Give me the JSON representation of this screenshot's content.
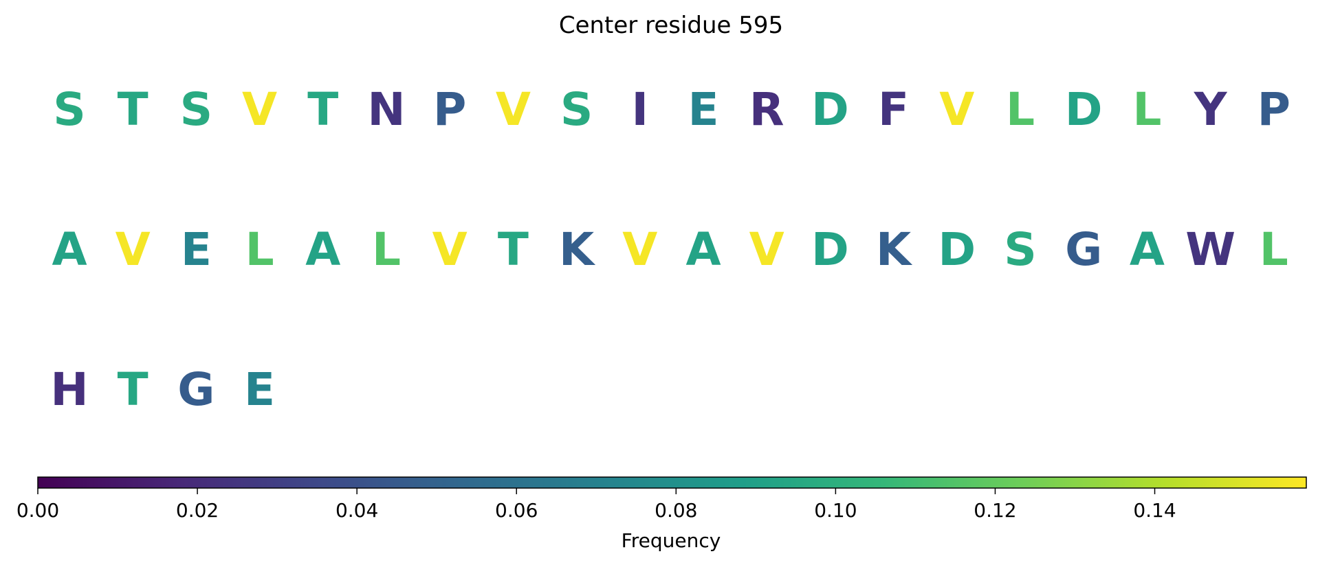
{
  "chart_data": {
    "type": "heatmap",
    "title": "Center residue 595",
    "residues": [
      {
        "letter": "S",
        "frequency": 0.097
      },
      {
        "letter": "T",
        "frequency": 0.095
      },
      {
        "letter": "S",
        "frequency": 0.097
      },
      {
        "letter": "V",
        "frequency": 0.157
      },
      {
        "letter": "T",
        "frequency": 0.095
      },
      {
        "letter": "N",
        "frequency": 0.024
      },
      {
        "letter": "P",
        "frequency": 0.046
      },
      {
        "letter": "V",
        "frequency": 0.157
      },
      {
        "letter": "S",
        "frequency": 0.097
      },
      {
        "letter": "I",
        "frequency": 0.024
      },
      {
        "letter": "E",
        "frequency": 0.071
      },
      {
        "letter": "R",
        "frequency": 0.022
      },
      {
        "letter": "D",
        "frequency": 0.092
      },
      {
        "letter": "F",
        "frequency": 0.024
      },
      {
        "letter": "V",
        "frequency": 0.157
      },
      {
        "letter": "L",
        "frequency": 0.115
      },
      {
        "letter": "D",
        "frequency": 0.092
      },
      {
        "letter": "L",
        "frequency": 0.115
      },
      {
        "letter": "Y",
        "frequency": 0.024
      },
      {
        "letter": "P",
        "frequency": 0.046
      },
      {
        "letter": "A",
        "frequency": 0.092
      },
      {
        "letter": "V",
        "frequency": 0.157
      },
      {
        "letter": "E",
        "frequency": 0.071
      },
      {
        "letter": "L",
        "frequency": 0.115
      },
      {
        "letter": "A",
        "frequency": 0.092
      },
      {
        "letter": "L",
        "frequency": 0.115
      },
      {
        "letter": "V",
        "frequency": 0.157
      },
      {
        "letter": "T",
        "frequency": 0.095
      },
      {
        "letter": "K",
        "frequency": 0.048
      },
      {
        "letter": "V",
        "frequency": 0.157
      },
      {
        "letter": "A",
        "frequency": 0.092
      },
      {
        "letter": "V",
        "frequency": 0.157
      },
      {
        "letter": "D",
        "frequency": 0.092
      },
      {
        "letter": "K",
        "frequency": 0.048
      },
      {
        "letter": "D",
        "frequency": 0.092
      },
      {
        "letter": "S",
        "frequency": 0.097
      },
      {
        "letter": "G",
        "frequency": 0.046
      },
      {
        "letter": "A",
        "frequency": 0.092
      },
      {
        "letter": "W",
        "frequency": 0.024
      },
      {
        "letter": "L",
        "frequency": 0.115
      },
      {
        "letter": "H",
        "frequency": 0.022
      },
      {
        "letter": "T",
        "frequency": 0.095
      },
      {
        "letter": "G",
        "frequency": 0.046
      },
      {
        "letter": "E",
        "frequency": 0.071
      }
    ],
    "colorbar": {
      "label": "Frequency",
      "colormap": "viridis",
      "range": [
        0.0,
        0.159
      ],
      "ticks": [
        "0.00",
        "0.02",
        "0.04",
        "0.06",
        "0.08",
        "0.10",
        "0.12",
        "0.14"
      ]
    }
  }
}
